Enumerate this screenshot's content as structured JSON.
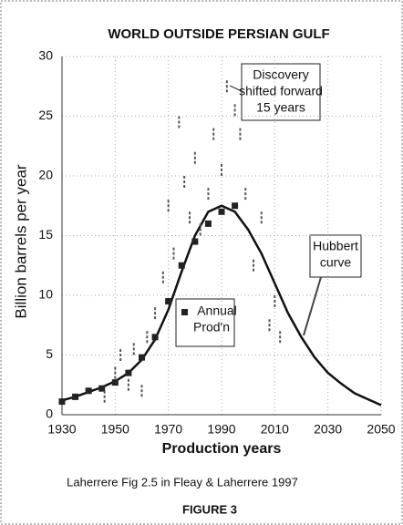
{
  "chart_data": {
    "type": "line",
    "title": "WORLD OUTSIDE PERSIAN GULF",
    "y_label": "Billion barrels per year",
    "x_label": "Production years",
    "caption": "Laherrere Fig 2.5 in Fleay & Laherrere 1997",
    "figure_label": "FIGURE 3",
    "xlim": [
      1930,
      2050
    ],
    "xticks": [
      1930,
      1950,
      1970,
      1990,
      2010,
      2030,
      2050
    ],
    "ylim": [
      0,
      30
    ],
    "yticks": [
      0,
      5,
      10,
      15,
      20,
      25,
      30
    ],
    "grid": true,
    "series": [
      {
        "kind": "line",
        "color": "#111111",
        "x": [
          1930,
          1935,
          1940,
          1945,
          1950,
          1955,
          1960,
          1965,
          1970,
          1975,
          1980,
          1985,
          1990,
          1995,
          2000,
          2005,
          2010,
          2015,
          2020,
          2025,
          2030,
          2035,
          2040,
          2045,
          2050
        ],
        "values": [
          1.2,
          1.5,
          1.9,
          2.3,
          2.8,
          3.5,
          4.6,
          6.3,
          8.8,
          12,
          15,
          17,
          17.5,
          17,
          15.5,
          13.5,
          11,
          8.5,
          6.5,
          4.8,
          3.5,
          2.6,
          1.8,
          1.3,
          0.8
        ]
      },
      {
        "kind": "square",
        "color": "#222222",
        "x": [
          1930,
          1935,
          1940,
          1945,
          1950,
          1955,
          1960,
          1965,
          1970,
          1975,
          1980,
          1985,
          1990,
          1995
        ],
        "values": [
          1.1,
          1.5,
          2,
          2.2,
          2.7,
          3.5,
          4.8,
          6.5,
          9.5,
          12.5,
          14.5,
          16,
          17,
          17.5
        ]
      },
      {
        "kind": "tick",
        "color": "#555555",
        "x": [
          1946,
          1950,
          1952,
          1955,
          1957,
          1960,
          1962,
          1965,
          1968,
          1970,
          1972,
          1974,
          1976,
          1978,
          1980,
          1982,
          1985,
          1987,
          1990,
          1992,
          1995,
          1997,
          1999,
          2002,
          2005,
          2008,
          2010,
          2012
        ],
        "values": [
          2,
          4,
          5.5,
          3,
          6,
          2.5,
          7,
          9,
          12,
          18,
          14,
          25,
          20,
          17,
          22,
          16,
          19,
          24,
          21,
          28,
          26,
          24,
          19,
          13,
          17,
          8,
          10,
          7
        ]
      }
    ],
    "annotations": [
      {
        "lines": [
          "Discovery",
          "shifted forward",
          "15 years"
        ]
      },
      {
        "lines": [
          "Hubbert",
          "curve"
        ]
      },
      {
        "lines": [
          "Annual",
          "Prod'n"
        ]
      }
    ]
  }
}
